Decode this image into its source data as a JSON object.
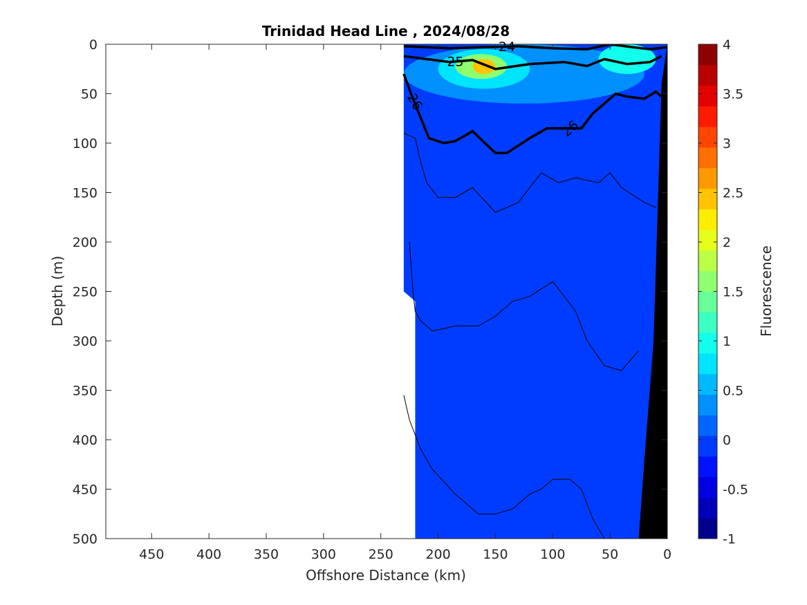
{
  "chart_data": {
    "type": "heatmap",
    "title": "Trinidad Head Line , 2024/08/28",
    "xlabel": "Offshore Distance (km)",
    "ylabel": "Depth (m)",
    "xlim": [
      490,
      0
    ],
    "ylim": [
      0,
      500
    ],
    "x_reversed": true,
    "y_reversed": true,
    "x_ticks": [
      450,
      400,
      350,
      300,
      250,
      200,
      150,
      100,
      50,
      0
    ],
    "y_ticks": [
      0,
      50,
      100,
      150,
      200,
      250,
      300,
      350,
      400,
      450,
      500
    ],
    "colorbar": {
      "label": "Fluorescence",
      "range": [
        -1,
        4
      ],
      "ticks": [
        4,
        3.5,
        3,
        2.5,
        2,
        1.5,
        1,
        0.5,
        0,
        -0.5,
        -1
      ],
      "levels": [
        -1,
        -0.75,
        -0.5,
        -0.25,
        0,
        0.25,
        0.5,
        0.75,
        1,
        1.25,
        1.5,
        1.75,
        2,
        2.25,
        2.5,
        2.75,
        3,
        3.25,
        3.5,
        3.75,
        4
      ],
      "colors": [
        "#00008f",
        "#0000bb",
        "#0000e5",
        "#0012ff",
        "#003cff",
        "#0066ff",
        "#0090ff",
        "#00baff",
        "#00e5ff",
        "#12ffed",
        "#3cffc3",
        "#66ff99",
        "#90ff6f",
        "#baff45",
        "#e5ff1a",
        "#ffed00",
        "#ffc300",
        "#ff9900",
        "#ff6f00",
        "#ff4500",
        "#ff1a00",
        "#e50000",
        "#bb0000",
        "#8f0000"
      ]
    },
    "data_region": {
      "xmin_km": 0,
      "xmax_km_surface": 230,
      "xmax_km_deep": 220,
      "background_value": 0.1
    },
    "surface_patches": [
      {
        "x": [
          230,
          20
        ],
        "depth": [
          0,
          60
        ],
        "value": 0.6
      },
      {
        "x": [
          200,
          120
        ],
        "depth": [
          5,
          45
        ],
        "value": 1.1
      },
      {
        "x": [
          185,
          140
        ],
        "depth": [
          10,
          35
        ],
        "value": 2.2
      },
      {
        "x": [
          170,
          150
        ],
        "depth": [
          15,
          30
        ],
        "value": 3.2
      },
      {
        "x": [
          60,
          10
        ],
        "depth": [
          0,
          30
        ],
        "value": 1.3
      }
    ],
    "density_contours": [
      {
        "level": "24",
        "x": [
          230,
          210,
          190,
          160,
          130,
          100,
          70,
          50,
          30,
          15,
          0
        ],
        "depth": [
          2,
          3,
          4,
          3,
          2,
          4,
          5,
          0,
          3,
          5,
          3
        ]
      },
      {
        "level": "25",
        "x": [
          230,
          210,
          190,
          170,
          150,
          120,
          90,
          70,
          55,
          35,
          15,
          5
        ],
        "depth": [
          12,
          15,
          18,
          16,
          25,
          20,
          18,
          22,
          15,
          20,
          18,
          12
        ]
      },
      {
        "level": "26",
        "x": [
          230,
          222,
          215,
          208,
          195,
          185,
          170,
          150,
          140,
          120,
          105,
          90,
          75,
          65,
          55,
          45,
          35,
          20,
          10,
          0
        ],
        "depth": [
          30,
          55,
          75,
          95,
          100,
          98,
          88,
          110,
          110,
          95,
          85,
          85,
          85,
          70,
          60,
          50,
          53,
          55,
          48,
          58
        ]
      }
    ],
    "thin_contours": [
      {
        "x": [
          230,
          220,
          215,
          210,
          200,
          185,
          170,
          150,
          130,
          110,
          95,
          80,
          60,
          50,
          40,
          20,
          10
        ],
        "depth": [
          90,
          95,
          120,
          140,
          155,
          155,
          145,
          170,
          160,
          130,
          140,
          135,
          140,
          130,
          145,
          160,
          165
        ]
      },
      {
        "x": [
          225,
          222,
          220,
          215,
          205,
          185,
          165,
          150,
          135,
          120,
          100,
          90,
          80,
          70,
          55,
          40,
          25
        ],
        "depth": [
          200,
          250,
          270,
          280,
          290,
          285,
          285,
          275,
          260,
          255,
          240,
          255,
          270,
          300,
          325,
          330,
          310
        ]
      },
      {
        "x": [
          230,
          225,
          215,
          205,
          185,
          165,
          150,
          135,
          120,
          110,
          100,
          85,
          75,
          65,
          55
        ],
        "depth": [
          355,
          380,
          410,
          430,
          455,
          475,
          475,
          470,
          455,
          450,
          440,
          440,
          450,
          480,
          500
        ]
      }
    ],
    "bathymetry": {
      "x": [
        0,
        5,
        12,
        20,
        25,
        25,
        0
      ],
      "depth": [
        0,
        40,
        300,
        420,
        500,
        500,
        500
      ]
    }
  }
}
